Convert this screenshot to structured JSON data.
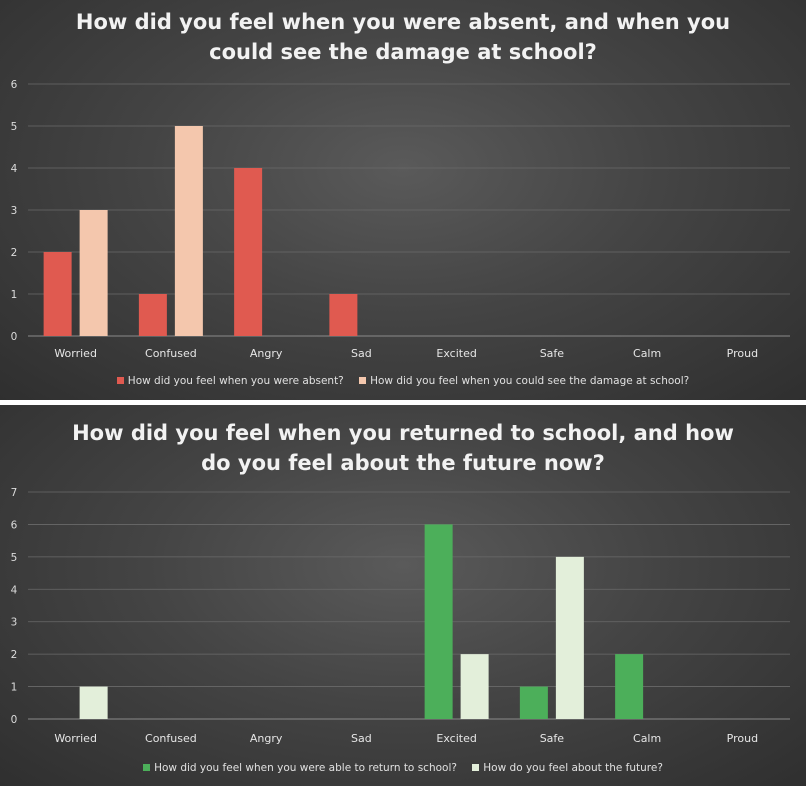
{
  "chart_data": [
    {
      "type": "bar",
      "title_lines": [
        "How did you feel when you were absent, and when you",
        "could see the damage at school?"
      ],
      "categories": [
        "Worried",
        "Confused",
        "Angry",
        "Sad",
        "Excited",
        "Safe",
        "Calm",
        "Proud"
      ],
      "series": [
        {
          "name": "How did you feel when you were absent?",
          "values": [
            2,
            1,
            4,
            1,
            0,
            0,
            0,
            0
          ],
          "color": "#e05a50"
        },
        {
          "name": "How did you feel when you could see the damage at school?",
          "values": [
            3,
            5,
            0,
            0,
            0,
            0,
            0,
            0
          ],
          "color": "#f4c7ad"
        }
      ],
      "ylim": [
        0,
        6
      ],
      "yticks": [
        0,
        1,
        2,
        3,
        4,
        5,
        6
      ],
      "grid": true,
      "legend_position": "bottom"
    },
    {
      "type": "bar",
      "title_lines": [
        "How did you feel when you returned to school, and how",
        "do you feel about the future now?"
      ],
      "categories": [
        "Worried",
        "Confused",
        "Angry",
        "Sad",
        "Excited",
        "Safe",
        "Calm",
        "Proud"
      ],
      "series": [
        {
          "name": "How did you feel when you were able to return to school?",
          "values": [
            0,
            0,
            0,
            0,
            6,
            1,
            2,
            0
          ],
          "color": "#4caf5a"
        },
        {
          "name": "How do you feel about the future?",
          "values": [
            1,
            0,
            0,
            0,
            2,
            5,
            0,
            0
          ],
          "color": "#e3efda"
        }
      ],
      "ylim": [
        0,
        7
      ],
      "yticks": [
        0,
        1,
        2,
        3,
        4,
        5,
        6,
        7
      ],
      "grid": true,
      "legend_position": "bottom"
    }
  ]
}
